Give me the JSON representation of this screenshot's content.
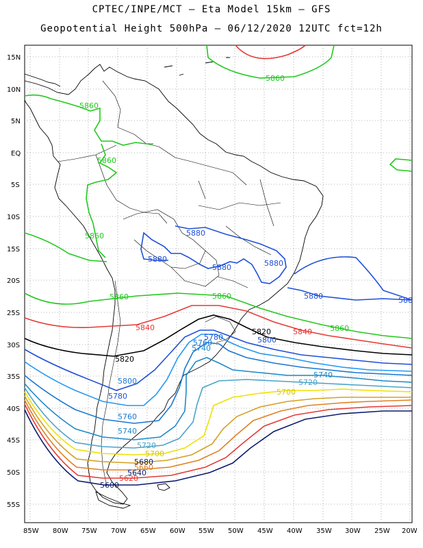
{
  "title": {
    "line1": "CPTEC/INPE/MCT –  Eta Model 15km – GFS",
    "line2": "Geopotential Height 500hPa – 06/12/2020 12UTC fct=12h"
  },
  "axes": {
    "lat_labels": [
      "15N",
      "10N",
      "5N",
      "EQ",
      "5S",
      "10S",
      "15S",
      "20S",
      "25S",
      "30S",
      "35S",
      "40S",
      "45S",
      "50S",
      "55S"
    ],
    "lon_labels": [
      "85W",
      "80W",
      "75W",
      "70W",
      "65W",
      "60W",
      "55W",
      "50W",
      "45W",
      "40W",
      "35W",
      "30W",
      "25W",
      "20W"
    ]
  },
  "contour_levels": [
    {
      "value": "5860",
      "color": "#e53935"
    },
    {
      "value": "5880",
      "color": "#1e4fd8"
    },
    {
      "value": "5860",
      "color": "#22c81e"
    },
    {
      "value": "5840",
      "color": "#e53935"
    },
    {
      "value": "5820",
      "color": "#000000"
    },
    {
      "value": "5800",
      "color": "#1e4fd8"
    },
    {
      "value": "5780",
      "color": "#2196f3"
    },
    {
      "value": "5760",
      "color": "#1976d2"
    },
    {
      "value": "5740",
      "color": "#1e88c8"
    },
    {
      "value": "5720",
      "color": "#4aa3c8"
    },
    {
      "value": "5700",
      "color": "#f0e000"
    },
    {
      "value": "5680",
      "color": "#d4a020"
    },
    {
      "value": "5660",
      "color": "#e08020"
    },
    {
      "value": "5640",
      "color": "#e53935"
    },
    {
      "value": "5620",
      "color": "#0b1a6e"
    },
    {
      "value": "5600",
      "color": "#0b1a6e"
    }
  ],
  "labels": {
    "l5860_top": "5860",
    "l5860_nw": "5860",
    "l5860_amaz": "5860",
    "l5860_w": "5860",
    "l5880_c1": "5880",
    "l5880_c2": "5880",
    "l5880_c3": "5880",
    "l5880_c4": "5880",
    "l5880_e": "5880",
    "l5880_edge": "588",
    "l5860_m1": "5860",
    "l5860_m2": "5860",
    "l5860_m3": "5860",
    "l5840_w": "5840",
    "l5840_e": "5840",
    "l5820_w": "5820",
    "l5820_e": "5820",
    "l5800_e": "5800",
    "l5800_w": "5800",
    "l5780_c": "5780",
    "l5780_w": "5780",
    "l5760_c": "5760",
    "l5760_w": "5760",
    "l5740_c": "5740",
    "l5740_w": "5740",
    "l5740_e": "5740",
    "l5720_w": "5720",
    "l5720_e": "5720",
    "l5700_w": "5700",
    "l5700_e": "5700",
    "l5680": "5680",
    "l5660": "5660",
    "l5640": "5640",
    "l5620": "5620",
    "l5600": "5600"
  }
}
